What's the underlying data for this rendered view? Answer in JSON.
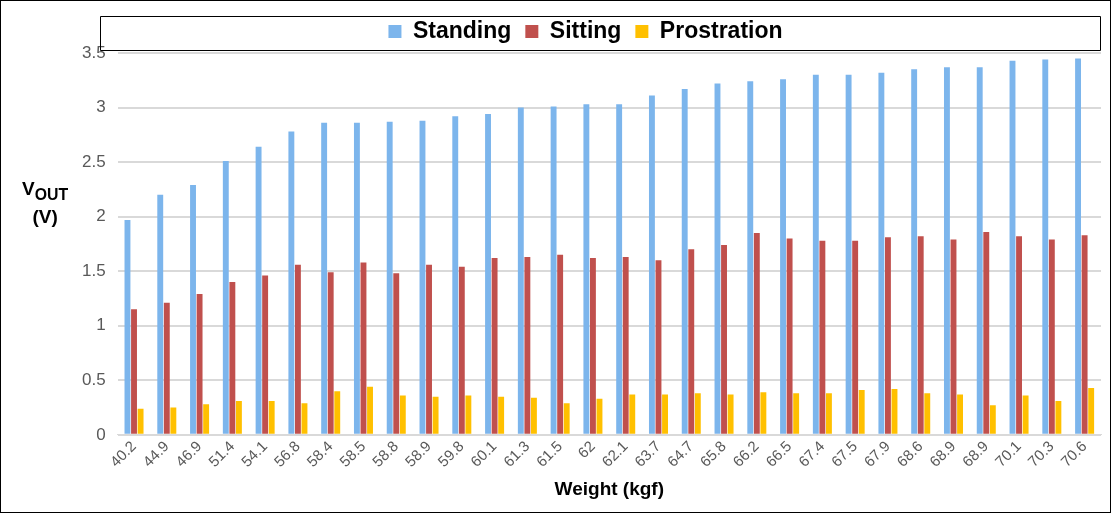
{
  "chart_data": {
    "type": "bar",
    "xlabel": "Weight (kgf)",
    "ylabel": "V$_{OUT}$ (V)",
    "categories": [
      "40.2",
      "44.9",
      "46.9",
      "51.4",
      "54.1",
      "56.8",
      "58.4",
      "58.5",
      "58.8",
      "58.9",
      "59.8",
      "60.1",
      "61.3",
      "61.5",
      "62",
      "62.1",
      "63.7",
      "64.7",
      "65.8",
      "66.2",
      "66.5",
      "67.4",
      "67.5",
      "67.9",
      "68.6",
      "68.9",
      "68.9",
      "70.1",
      "70.3",
      "70.6"
    ],
    "series": [
      {
        "name": "Standing",
        "color": "#7cb5ec",
        "values": [
          1.97,
          2.2,
          2.29,
          2.51,
          2.64,
          2.78,
          2.86,
          2.86,
          2.87,
          2.88,
          2.92,
          2.94,
          3.0,
          3.01,
          3.03,
          3.03,
          3.11,
          3.17,
          3.22,
          3.24,
          3.26,
          3.3,
          3.3,
          3.32,
          3.35,
          3.37,
          3.37,
          3.43,
          3.44,
          3.45
        ]
      },
      {
        "name": "Sitting",
        "color": "#c0504d",
        "values": [
          1.15,
          1.21,
          1.29,
          1.4,
          1.46,
          1.56,
          1.49,
          1.58,
          1.48,
          1.56,
          1.54,
          1.62,
          1.63,
          1.65,
          1.62,
          1.63,
          1.6,
          1.7,
          1.74,
          1.85,
          1.8,
          1.78,
          1.78,
          1.81,
          1.82,
          1.79,
          1.86,
          1.82,
          1.79,
          1.83
        ]
      },
      {
        "name": "Prostration",
        "color": "#ffc000",
        "values": [
          0.24,
          0.25,
          0.28,
          0.31,
          0.31,
          0.29,
          0.4,
          0.44,
          0.36,
          0.35,
          0.36,
          0.35,
          0.34,
          0.29,
          0.33,
          0.37,
          0.37,
          0.38,
          0.37,
          0.39,
          0.38,
          0.38,
          0.41,
          0.42,
          0.38,
          0.37,
          0.27,
          0.36,
          0.31,
          0.43
        ]
      }
    ],
    "ylim": [
      0,
      3.5
    ],
    "yticks": [
      0,
      0.5,
      1,
      1.5,
      2,
      2.5,
      3,
      3.5
    ],
    "grid": "y",
    "legend": "top"
  }
}
